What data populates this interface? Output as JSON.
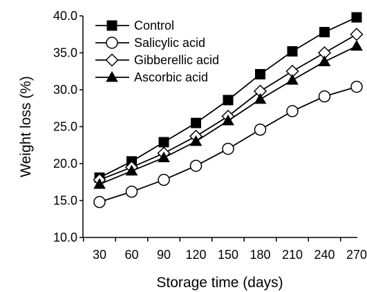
{
  "chart_data": {
    "type": "line",
    "xlabel": "Storage time (days)",
    "ylabel": "Weight loss (%)",
    "x": [
      30,
      60,
      90,
      120,
      150,
      180,
      210,
      240,
      270
    ],
    "x_tick_labels": [
      "30",
      "60",
      "90",
      "120",
      "150",
      "180",
      "210",
      "240",
      "270"
    ],
    "y_tick_labels": [
      "10.0",
      "15.0",
      "20.0",
      "25.0",
      "30.0",
      "35.0",
      "40.0"
    ],
    "ylim": [
      10,
      40
    ],
    "grid": false,
    "legend_position": "top-left",
    "series": [
      {
        "name": "Control",
        "marker": "filled-square",
        "color": "#000000",
        "values": [
          18.1,
          20.3,
          22.9,
          25.5,
          28.6,
          32.1,
          35.2,
          37.8,
          39.8
        ]
      },
      {
        "name": "Salicylic acid",
        "marker": "open-circle",
        "color": "#000000",
        "values": [
          14.8,
          16.2,
          17.8,
          19.7,
          22.0,
          24.6,
          27.1,
          29.1,
          30.4
        ]
      },
      {
        "name": "Gibberellic acid",
        "marker": "open-diamond",
        "color": "#000000",
        "values": [
          17.8,
          19.5,
          21.4,
          23.7,
          26.4,
          29.8,
          32.5,
          35.0,
          37.5
        ]
      },
      {
        "name": "Ascorbic acid",
        "marker": "filled-triangle",
        "color": "#000000",
        "values": [
          17.2,
          19.0,
          20.8,
          23.0,
          25.8,
          28.7,
          31.3,
          33.8,
          35.9
        ]
      }
    ]
  }
}
